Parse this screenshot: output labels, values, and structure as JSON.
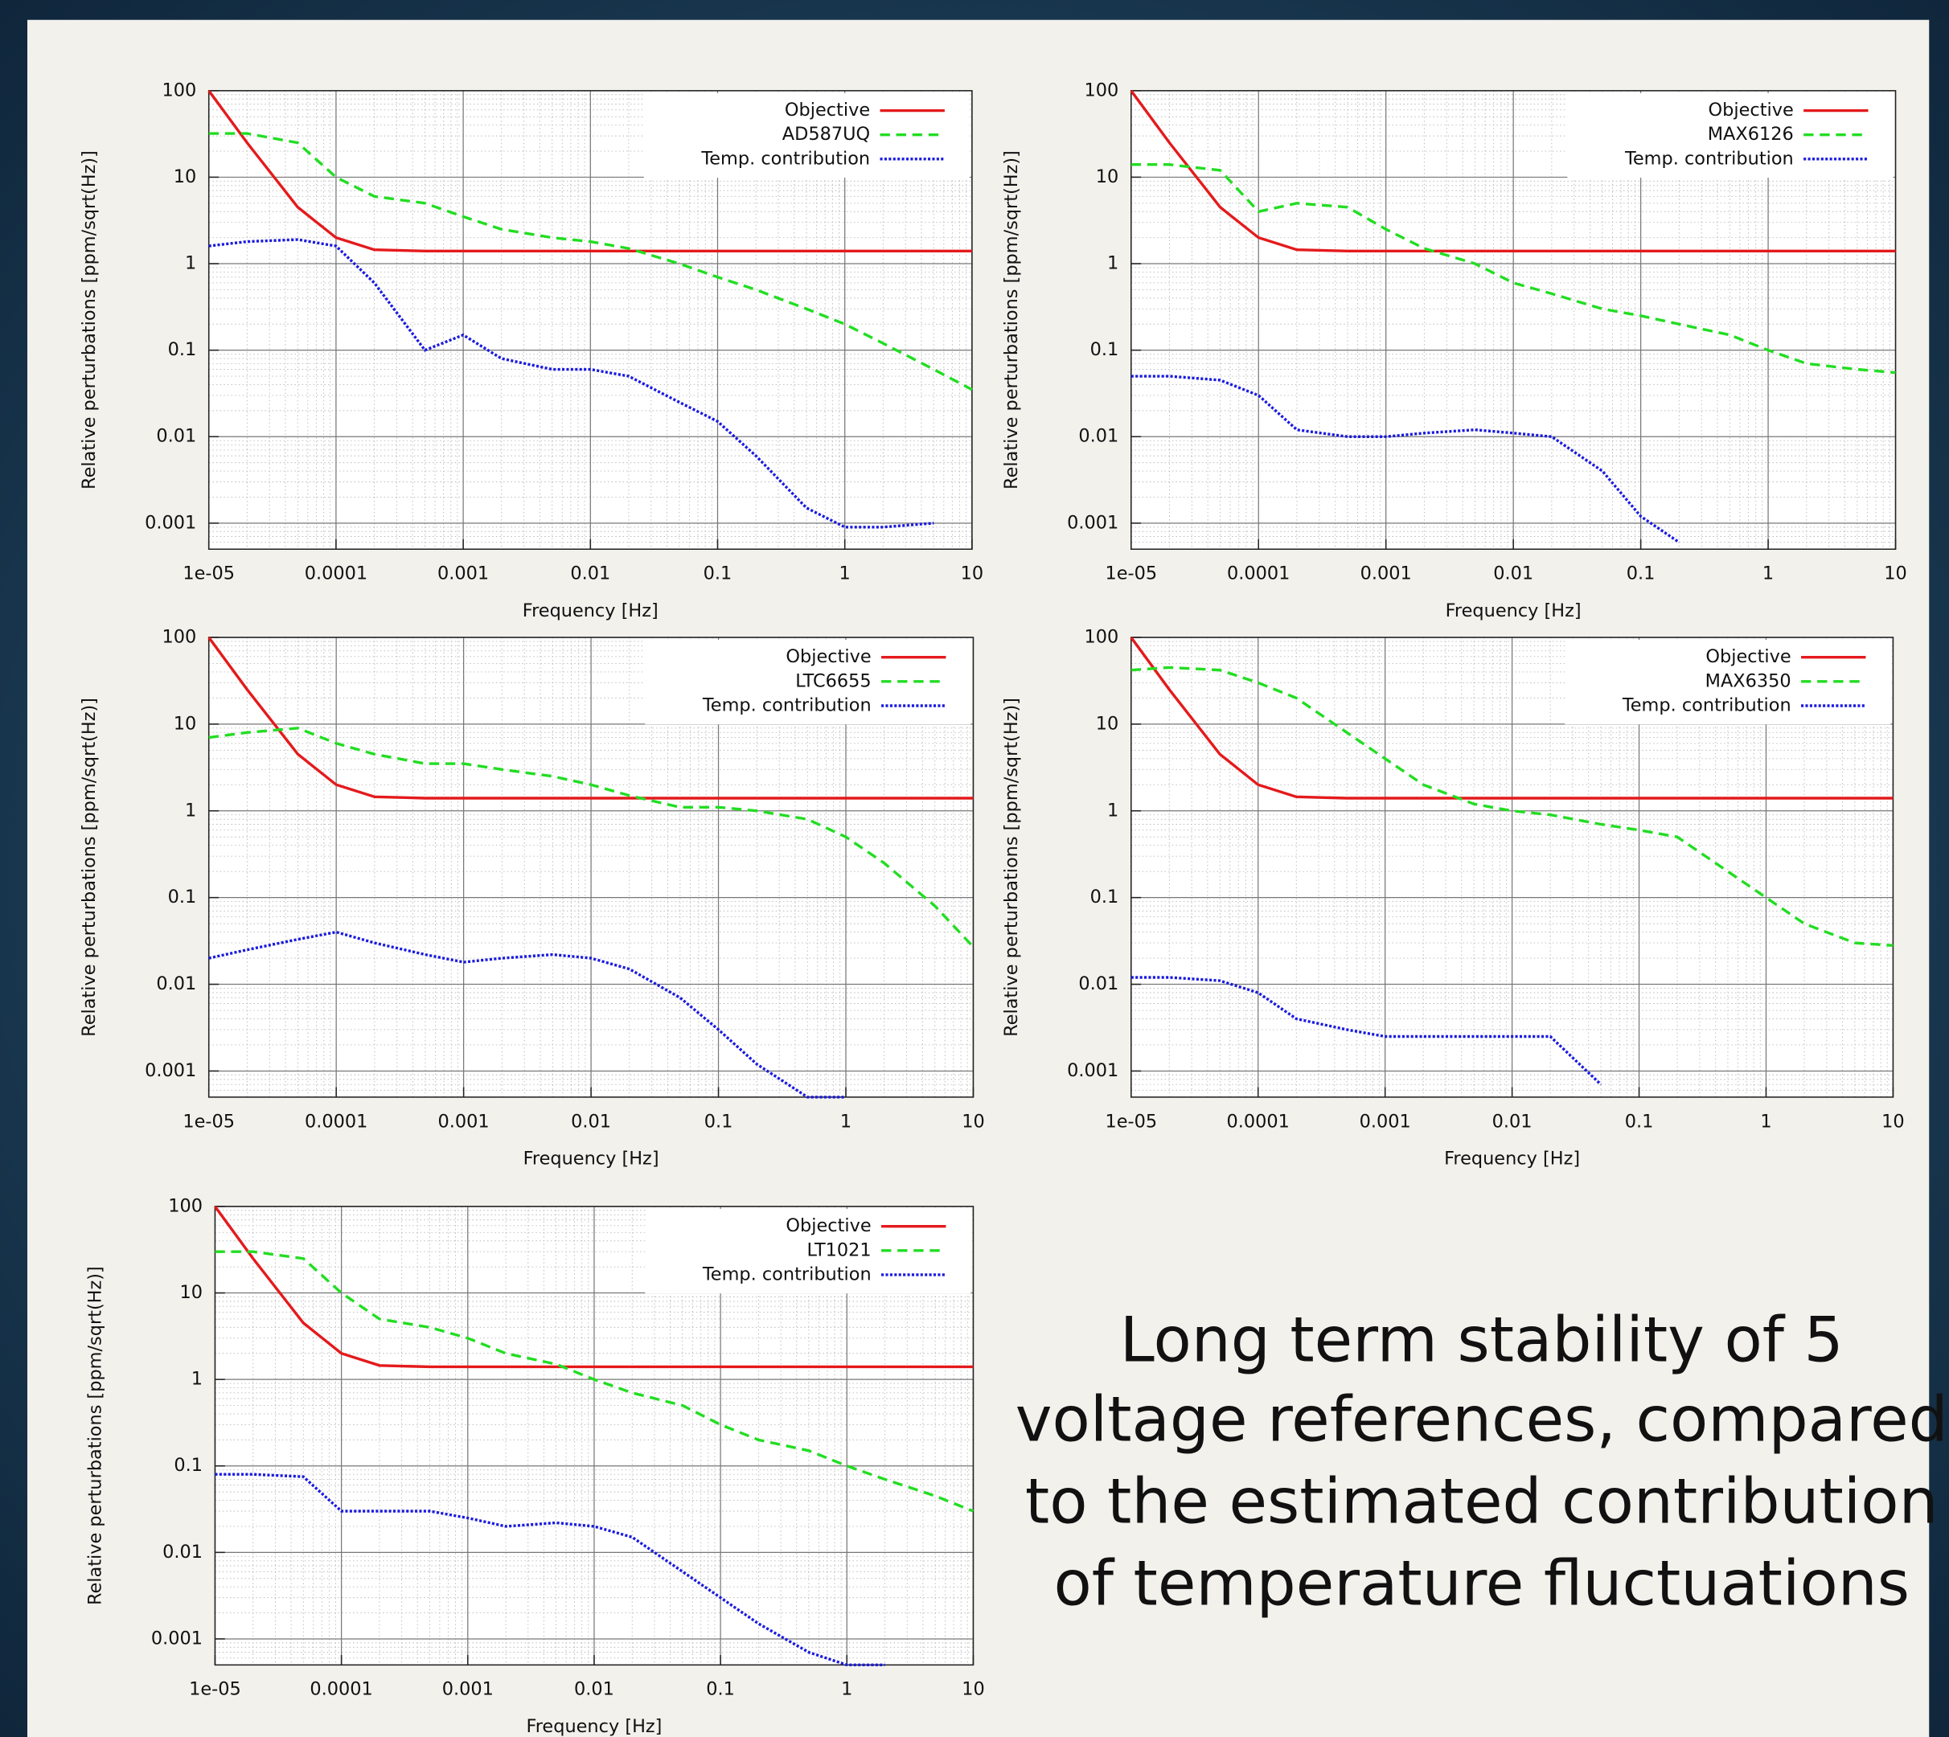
{
  "chart_data": [
    {
      "type": "line",
      "xlabel": "Frequency [Hz]",
      "ylabel": "Relative perturbations [ppm/sqrt(Hz)]",
      "x": [
        1e-05,
        2e-05,
        5e-05,
        0.0001,
        0.0002,
        0.0005,
        0.001,
        0.002,
        0.005,
        0.01,
        0.02,
        0.05,
        0.1,
        0.2,
        0.5,
        1,
        2,
        5,
        10
      ],
      "xlim": [
        1e-05,
        10
      ],
      "ylim": [
        0.0005,
        100
      ],
      "log_x": true,
      "log_y": true,
      "grid": true,
      "legend": "upper right",
      "xticks": [
        {
          "value": 1e-05,
          "label": "1e-05"
        },
        0.0001,
        0.001,
        0.01,
        0.1,
        1,
        10
      ],
      "yticks": [
        0.001,
        0.01,
        0.1,
        1,
        10,
        100
      ],
      "series": [
        {
          "name": "Objective",
          "color": "#e41a1c",
          "dash": "solid",
          "values": [
            100,
            25,
            4.5,
            2,
            1.45,
            1.4,
            1.4,
            1.4,
            1.4,
            1.4,
            1.4,
            1.4,
            1.4,
            1.4,
            1.4,
            1.4,
            1.4,
            1.4,
            1.4
          ]
        },
        {
          "name": "AD587UQ",
          "color": "#22dd22",
          "dash": "dashed",
          "values": [
            32,
            32,
            25,
            10,
            6,
            5,
            3.5,
            2.5,
            2,
            1.8,
            1.5,
            1,
            0.7,
            0.5,
            0.3,
            0.2,
            0.12,
            0.06,
            0.035
          ]
        },
        {
          "name": "Temp. contribution",
          "color": "#1a1ae0",
          "dash": "dotted",
          "values": [
            1.6,
            1.8,
            1.9,
            1.6,
            0.6,
            0.1,
            0.15,
            0.08,
            0.06,
            0.06,
            0.05,
            0.025,
            0.015,
            0.006,
            0.0015,
            0.0009,
            0.0009,
            0.001,
            null
          ]
        }
      ]
    },
    {
      "type": "line",
      "xlabel": "Frequency [Hz]",
      "ylabel": "Relative perturbations [ppm/sqrt(Hz)]",
      "x": [
        1e-05,
        2e-05,
        5e-05,
        0.0001,
        0.0002,
        0.0005,
        0.001,
        0.002,
        0.005,
        0.01,
        0.02,
        0.05,
        0.1,
        0.2,
        0.5,
        1,
        2,
        5,
        10
      ],
      "xlim": [
        1e-05,
        10
      ],
      "ylim": [
        0.0005,
        100
      ],
      "log_x": true,
      "log_y": true,
      "grid": true,
      "legend": "upper right",
      "xticks": [
        {
          "value": 1e-05,
          "label": "1e-05"
        },
        0.0001,
        0.001,
        0.01,
        0.1,
        1,
        10
      ],
      "yticks": [
        0.001,
        0.01,
        0.1,
        1,
        10,
        100
      ],
      "series": [
        {
          "name": "Objective",
          "color": "#e41a1c",
          "dash": "solid",
          "values": [
            100,
            25,
            4.5,
            2,
            1.45,
            1.4,
            1.4,
            1.4,
            1.4,
            1.4,
            1.4,
            1.4,
            1.4,
            1.4,
            1.4,
            1.4,
            1.4,
            1.4,
            1.4
          ]
        },
        {
          "name": "MAX6126",
          "color": "#22dd22",
          "dash": "dashed",
          "values": [
            14,
            14,
            12,
            4,
            5,
            4.5,
            2.5,
            1.5,
            1,
            0.6,
            0.45,
            0.3,
            0.25,
            0.2,
            0.15,
            0.1,
            0.07,
            0.06,
            0.055
          ]
        },
        {
          "name": "Temp. contribution",
          "color": "#1a1ae0",
          "dash": "dotted",
          "values": [
            0.05,
            0.05,
            0.045,
            0.03,
            0.012,
            0.01,
            0.01,
            0.011,
            0.012,
            0.011,
            0.01,
            0.004,
            0.0012,
            0.0006,
            null,
            null,
            null,
            null,
            null
          ]
        }
      ]
    },
    {
      "type": "line",
      "xlabel": "Frequency [Hz]",
      "ylabel": "Relative perturbations [ppm/sqrt(Hz)]",
      "x": [
        1e-05,
        2e-05,
        5e-05,
        0.0001,
        0.0002,
        0.0005,
        0.001,
        0.002,
        0.005,
        0.01,
        0.02,
        0.05,
        0.1,
        0.2,
        0.5,
        1,
        2,
        5,
        10
      ],
      "xlim": [
        1e-05,
        10
      ],
      "ylim": [
        0.0005,
        100
      ],
      "log_x": true,
      "log_y": true,
      "grid": true,
      "legend": "upper right",
      "xticks": [
        {
          "value": 1e-05,
          "label": "1e-05"
        },
        0.0001,
        0.001,
        0.01,
        0.1,
        1,
        10
      ],
      "yticks": [
        0.001,
        0.01,
        0.1,
        1,
        10,
        100
      ],
      "series": [
        {
          "name": "Objective",
          "color": "#e41a1c",
          "dash": "solid",
          "values": [
            100,
            25,
            4.5,
            2,
            1.45,
            1.4,
            1.4,
            1.4,
            1.4,
            1.4,
            1.4,
            1.4,
            1.4,
            1.4,
            1.4,
            1.4,
            1.4,
            1.4,
            1.4
          ]
        },
        {
          "name": "LTC6655",
          "color": "#22dd22",
          "dash": "dashed",
          "values": [
            7,
            8,
            9,
            6,
            4.5,
            3.5,
            3.5,
            3,
            2.5,
            2,
            1.5,
            1.1,
            1.1,
            1,
            0.8,
            0.5,
            0.25,
            0.08,
            0.027
          ]
        },
        {
          "name": "Temp. contribution",
          "color": "#1a1ae0",
          "dash": "dotted",
          "values": [
            0.02,
            0.025,
            0.033,
            0.04,
            0.03,
            0.022,
            0.018,
            0.02,
            0.022,
            0.02,
            0.015,
            0.007,
            0.003,
            0.0012,
            0.0005,
            0.0005,
            null,
            null,
            null
          ]
        }
      ]
    },
    {
      "type": "line",
      "xlabel": "Frequency [Hz]",
      "ylabel": "Relative perturbations [ppm/sqrt(Hz)]",
      "x": [
        1e-05,
        2e-05,
        5e-05,
        0.0001,
        0.0002,
        0.0005,
        0.001,
        0.002,
        0.005,
        0.01,
        0.02,
        0.05,
        0.1,
        0.2,
        0.5,
        1,
        2,
        5,
        10
      ],
      "xlim": [
        1e-05,
        10
      ],
      "ylim": [
        0.0005,
        100
      ],
      "log_x": true,
      "log_y": true,
      "grid": true,
      "legend": "upper right",
      "xticks": [
        {
          "value": 1e-05,
          "label": "1e-05"
        },
        0.0001,
        0.001,
        0.01,
        0.1,
        1,
        10
      ],
      "yticks": [
        0.001,
        0.01,
        0.1,
        1,
        10,
        100
      ],
      "series": [
        {
          "name": "Objective",
          "color": "#e41a1c",
          "dash": "solid",
          "values": [
            100,
            25,
            4.5,
            2,
            1.45,
            1.4,
            1.4,
            1.4,
            1.4,
            1.4,
            1.4,
            1.4,
            1.4,
            1.4,
            1.4,
            1.4,
            1.4,
            1.4,
            1.4
          ]
        },
        {
          "name": "MAX6350",
          "color": "#22dd22",
          "dash": "dashed",
          "values": [
            42,
            45,
            42,
            30,
            20,
            8,
            4,
            2,
            1.2,
            1,
            0.9,
            0.7,
            0.6,
            0.5,
            0.2,
            0.1,
            0.05,
            0.03,
            0.028
          ]
        },
        {
          "name": "Temp. contribution",
          "color": "#1a1ae0",
          "dash": "dotted",
          "values": [
            0.012,
            0.012,
            0.011,
            0.008,
            0.004,
            0.003,
            0.0025,
            0.0025,
            0.0025,
            0.0025,
            0.0025,
            0.0007,
            null,
            null,
            null,
            null,
            null,
            null,
            null
          ]
        }
      ]
    },
    {
      "type": "line",
      "xlabel": "Frequency [Hz]",
      "ylabel": "Relative perturbations [ppm/sqrt(Hz)]",
      "x": [
        1e-05,
        2e-05,
        5e-05,
        0.0001,
        0.0002,
        0.0005,
        0.001,
        0.002,
        0.005,
        0.01,
        0.02,
        0.05,
        0.1,
        0.2,
        0.5,
        1,
        2,
        5,
        10
      ],
      "xlim": [
        1e-05,
        10
      ],
      "ylim": [
        0.0005,
        100
      ],
      "log_x": true,
      "log_y": true,
      "grid": true,
      "legend": "upper right",
      "xticks": [
        {
          "value": 1e-05,
          "label": "1e-05"
        },
        0.0001,
        0.001,
        0.01,
        0.1,
        1,
        10
      ],
      "yticks": [
        0.001,
        0.01,
        0.1,
        1,
        10,
        100
      ],
      "series": [
        {
          "name": "Objective",
          "color": "#e41a1c",
          "dash": "solid",
          "values": [
            100,
            25,
            4.5,
            2,
            1.45,
            1.4,
            1.4,
            1.4,
            1.4,
            1.4,
            1.4,
            1.4,
            1.4,
            1.4,
            1.4,
            1.4,
            1.4,
            1.4,
            1.4
          ]
        },
        {
          "name": "LT1021",
          "color": "#22dd22",
          "dash": "dashed",
          "values": [
            30,
            30,
            25,
            10,
            5,
            4,
            3,
            2,
            1.5,
            1,
            0.7,
            0.5,
            0.3,
            0.2,
            0.15,
            0.1,
            0.07,
            0.045,
            0.03
          ]
        },
        {
          "name": "Temp. contribution",
          "color": "#1a1ae0",
          "dash": "dotted",
          "values": [
            0.08,
            0.08,
            0.075,
            0.03,
            0.03,
            0.03,
            0.025,
            0.02,
            0.022,
            0.02,
            0.015,
            0.006,
            0.003,
            0.0015,
            0.0007,
            0.0005,
            0.0005,
            null,
            null
          ]
        }
      ]
    }
  ],
  "caption": [
    "Long term stability of 5",
    "voltage references, compared",
    "to the estimated contribution",
    "of temperature fluctuations"
  ]
}
